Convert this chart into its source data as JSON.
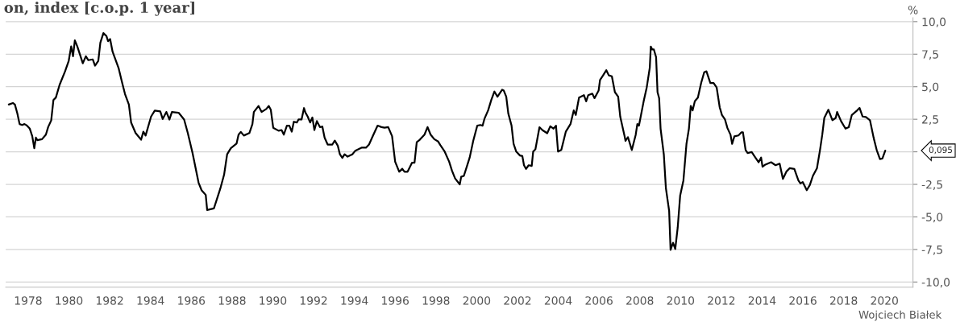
{
  "chart_data": {
    "type": "line",
    "title": "on, index [c.o.p. 1 year]",
    "ylabel": "%",
    "series": [
      {
        "color": "#000000",
        "x": [
          1977.05,
          1977.25,
          1977.35,
          1977.47,
          1977.58,
          1977.7,
          1977.82,
          1977.92,
          1978.08,
          1978.2,
          1978.3,
          1978.38,
          1978.45,
          1978.68,
          1978.87,
          1978.98,
          1979.13,
          1979.24,
          1979.36,
          1979.54,
          1979.81,
          1979.99,
          1980.11,
          1980.2,
          1980.29,
          1980.41,
          1980.68,
          1980.83,
          1980.95,
          1981.17,
          1981.28,
          1981.44,
          1981.54,
          1981.69,
          1981.84,
          1981.92,
          1982.02,
          1982.14,
          1982.44,
          1982.6,
          1982.75,
          1982.94,
          1983.05,
          1983.27,
          1983.54,
          1983.65,
          1983.76,
          1984.03,
          1984.21,
          1984.48,
          1984.6,
          1984.78,
          1984.93,
          1985.05,
          1985.38,
          1985.65,
          1985.83,
          1986.06,
          1986.36,
          1986.51,
          1986.71,
          1986.78,
          1987.11,
          1987.42,
          1987.61,
          1987.76,
          1987.94,
          1988.22,
          1988.32,
          1988.43,
          1988.58,
          1988.85,
          1989.0,
          1989.07,
          1989.3,
          1989.45,
          1989.68,
          1989.8,
          1989.9,
          1990.02,
          1990.28,
          1990.43,
          1990.54,
          1990.69,
          1990.81,
          1990.93,
          1991.03,
          1991.18,
          1991.26,
          1991.41,
          1991.53,
          1991.6,
          1991.71,
          1991.83,
          1991.94,
          1992.04,
          1992.16,
          1992.31,
          1992.43,
          1992.54,
          1992.69,
          1992.92,
          1993.04,
          1993.19,
          1993.29,
          1993.41,
          1993.52,
          1993.67,
          1993.9,
          1994.05,
          1994.35,
          1994.57,
          1994.72,
          1994.9,
          1995.14,
          1995.33,
          1995.48,
          1995.66,
          1995.85,
          1996.0,
          1996.2,
          1996.35,
          1996.46,
          1996.61,
          1996.83,
          1996.95,
          1997.06,
          1997.21,
          1997.44,
          1997.59,
          1997.74,
          1997.92,
          1998.11,
          1998.22,
          1998.42,
          1998.65,
          1998.79,
          1998.94,
          1999.17,
          1999.24,
          1999.37,
          1999.52,
          1999.66,
          1999.83,
          2000.03,
          2000.18,
          2000.29,
          2000.38,
          2000.56,
          2000.72,
          2000.87,
          2001.02,
          2001.25,
          2001.33,
          2001.45,
          2001.55,
          2001.71,
          2001.81,
          2001.94,
          2002.12,
          2002.24,
          2002.32,
          2002.42,
          2002.55,
          2002.7,
          2002.77,
          2002.88,
          2003.08,
          2003.23,
          2003.46,
          2003.61,
          2003.77,
          2003.89,
          2003.99,
          2004.15,
          2004.37,
          2004.6,
          2004.76,
          2004.86,
          2005.02,
          2005.26,
          2005.37,
          2005.47,
          2005.67,
          2005.78,
          2005.98,
          2006.05,
          2006.2,
          2006.36,
          2006.48,
          2006.63,
          2006.78,
          2006.94,
          2007.04,
          2007.24,
          2007.3,
          2007.42,
          2007.61,
          2007.8,
          2007.88,
          2007.96,
          2008.19,
          2008.34,
          2008.49,
          2008.54,
          2008.61,
          2008.69,
          2008.8,
          2008.87,
          2008.95,
          2009.02,
          2009.18,
          2009.28,
          2009.44,
          2009.51,
          2009.63,
          2009.74,
          2009.86,
          2009.98,
          2010.14,
          2010.29,
          2010.41,
          2010.5,
          2010.59,
          2010.7,
          2010.85,
          2011.01,
          2011.16,
          2011.27,
          2011.46,
          2011.62,
          2011.77,
          2011.92,
          2012.03,
          2012.18,
          2012.3,
          2012.45,
          2012.53,
          2012.64,
          2012.84,
          2012.99,
          2013.06,
          2013.19,
          2013.29,
          2013.49,
          2013.64,
          2013.83,
          2013.95,
          2014.02,
          2014.16,
          2014.44,
          2014.66,
          2014.86,
          2015.02,
          2015.2,
          2015.35,
          2015.58,
          2015.78,
          2015.88,
          2015.99,
          2016.19,
          2016.34,
          2016.49,
          2016.69,
          2016.84,
          2016.95,
          2017.05,
          2017.25,
          2017.45,
          2017.61,
          2017.68,
          2017.87,
          2018.09,
          2018.25,
          2018.4,
          2018.63,
          2018.78,
          2018.93,
          2019.09,
          2019.29,
          2019.47,
          2019.62,
          2019.78,
          2019.9,
          2020.04
        ],
        "values": [
          3.63,
          3.75,
          3.63,
          2.94,
          2.13,
          2.06,
          2.13,
          2.04,
          1.78,
          1.2,
          0.28,
          1.09,
          0.9,
          0.97,
          1.32,
          1.9,
          2.41,
          3.98,
          4.17,
          5.14,
          6.18,
          6.99,
          8.1,
          7.34,
          8.56,
          8.1,
          6.8,
          7.34,
          7.04,
          7.1,
          6.62,
          6.99,
          8.38,
          9.12,
          8.89,
          8.5,
          8.66,
          7.69,
          6.41,
          5.37,
          4.44,
          3.63,
          2.25,
          1.44,
          0.93,
          1.55,
          1.25,
          2.71,
          3.17,
          3.1,
          2.52,
          3.06,
          2.48,
          3.06,
          3.0,
          2.48,
          1.44,
          -0.07,
          -2.38,
          -2.96,
          -3.31,
          -4.47,
          -4.35,
          -2.85,
          -1.76,
          -0.19,
          0.28,
          0.63,
          1.32,
          1.53,
          1.25,
          1.44,
          2.13,
          3.06,
          3.52,
          3.06,
          3.29,
          3.52,
          3.24,
          1.85,
          1.62,
          1.67,
          1.32,
          2.01,
          2.01,
          1.55,
          2.31,
          2.25,
          2.48,
          2.48,
          3.36,
          3.01,
          2.71,
          2.25,
          2.64,
          1.67,
          2.36,
          1.9,
          1.94,
          1.09,
          0.56,
          0.56,
          0.86,
          0.46,
          -0.19,
          -0.46,
          -0.19,
          -0.37,
          -0.19,
          0.09,
          0.32,
          0.32,
          0.56,
          1.2,
          2.01,
          1.9,
          1.85,
          1.9,
          1.2,
          -0.76,
          -1.53,
          -1.3,
          -1.53,
          -1.53,
          -0.83,
          -0.83,
          0.74,
          0.93,
          1.32,
          1.9,
          1.32,
          0.97,
          0.79,
          0.51,
          0.05,
          -0.76,
          -1.46,
          -2.04,
          -2.5,
          -1.92,
          -1.85,
          -1.11,
          -0.42,
          0.84,
          2.01,
          2.06,
          2.01,
          2.53,
          3.18,
          4.0,
          4.63,
          4.23,
          4.77,
          4.7,
          4.23,
          2.95,
          2.01,
          0.61,
          0.02,
          -0.28,
          -0.33,
          -1.03,
          -1.31,
          -1.03,
          -1.08,
          0.02,
          0.19,
          1.89,
          1.66,
          1.43,
          1.96,
          1.78,
          2.01,
          0.02,
          0.14,
          1.54,
          2.13,
          3.18,
          2.83,
          4.16,
          4.35,
          3.88,
          4.35,
          4.47,
          4.12,
          4.7,
          5.52,
          5.87,
          6.27,
          5.87,
          5.8,
          4.58,
          4.23,
          2.71,
          1.31,
          0.84,
          1.12,
          0.14,
          1.31,
          2.13,
          2.01,
          3.88,
          4.94,
          6.46,
          8.09,
          7.86,
          7.86,
          7.27,
          4.58,
          4.12,
          1.78,
          -0.21,
          -2.78,
          -4.54,
          -7.53,
          -6.99,
          -7.46,
          -5.82,
          -3.37,
          -2.2,
          0.61,
          1.78,
          3.53,
          3.18,
          3.88,
          4.16,
          5.29,
          6.11,
          6.18,
          5.29,
          5.29,
          4.94,
          3.42,
          2.83,
          2.48,
          1.82,
          1.31,
          0.61,
          1.19,
          1.26,
          1.5,
          1.5,
          0.14,
          -0.09,
          -0.02,
          -0.37,
          -0.8,
          -0.44,
          -1.15,
          -0.98,
          -0.8,
          -1.03,
          -0.91,
          -2.08,
          -1.5,
          -1.26,
          -1.31,
          -2.2,
          -2.43,
          -2.32,
          -2.95,
          -2.55,
          -1.85,
          -1.26,
          0.14,
          1.31,
          2.6,
          3.23,
          2.43,
          2.6,
          3.06,
          2.36,
          1.78,
          1.89,
          2.83,
          3.13,
          3.37,
          2.71,
          2.67,
          2.43,
          1.08,
          0.14,
          -0.56,
          -0.51,
          0.095
        ]
      }
    ],
    "xlim": [
      1976.9,
      2021.4
    ],
    "xticks": [
      1978,
      1980,
      1982,
      1984,
      1986,
      1988,
      1990,
      1992,
      1994,
      1996,
      1998,
      2000,
      2002,
      2004,
      2006,
      2008,
      2010,
      2012,
      2014,
      2016,
      2018,
      2020
    ],
    "ylim": [
      -10.4,
      10.3
    ],
    "yticks": [
      {
        "value": -10,
        "label": "-10,0"
      },
      {
        "value": -7.5,
        "label": "-7,5"
      },
      {
        "value": -5,
        "label": "-5,0"
      },
      {
        "value": -2.5,
        "label": "-2,5"
      },
      {
        "value": 0,
        "label": null
      },
      {
        "value": 2.5,
        "label": "2,5"
      },
      {
        "value": 5,
        "label": "5,0"
      },
      {
        "value": 7.5,
        "label": "7,5"
      },
      {
        "value": 10,
        "label": "10,0"
      }
    ],
    "grid": "y",
    "legend": false,
    "line_style": "solid",
    "marker": "none",
    "annotations": [
      "0,095",
      "Wojciech Białek"
    ]
  }
}
